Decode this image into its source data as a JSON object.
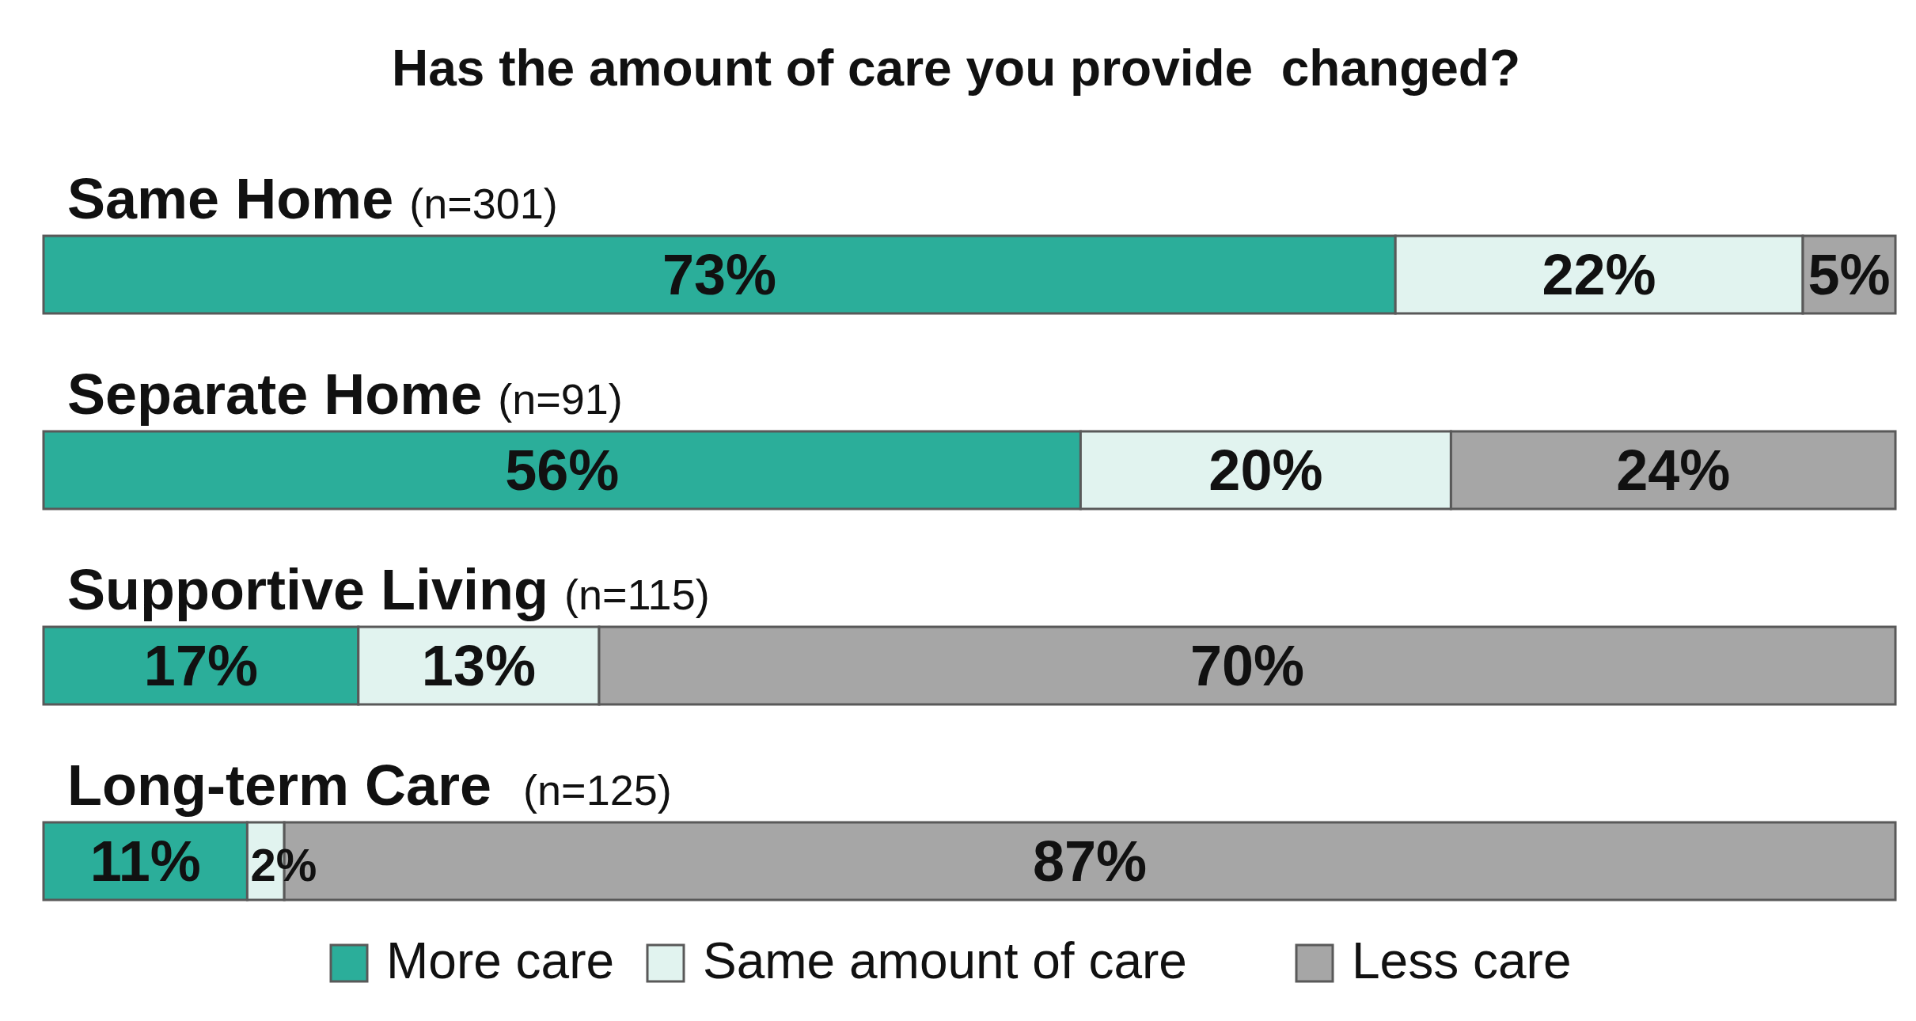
{
  "chart_data": {
    "type": "bar",
    "orientation": "horizontal",
    "stacked": true,
    "title": "Has the amount of care you provide  changed?",
    "categories": [
      "Same Home (n=301)",
      "Separate Home (n=91)",
      "Supportive Living (n=115)",
      "Long-term Care  (n=125)"
    ],
    "series": [
      {
        "name": "More care",
        "color": "#2bae9a",
        "values": [
          73,
          56,
          17,
          11
        ],
        "value_labels": [
          "73%",
          "56%",
          "17%",
          "11%"
        ]
      },
      {
        "name": "Same amount of care",
        "color": "#e1f3ef",
        "values": [
          22,
          20,
          13,
          2
        ],
        "value_labels": [
          "22%",
          "20%",
          "13%",
          "2%"
        ]
      },
      {
        "name": "Less care",
        "color": "#a6a6a6",
        "values": [
          5,
          24,
          70,
          87
        ],
        "value_labels": [
          "5%",
          "24%",
          "70%",
          "87%"
        ]
      }
    ],
    "legend": "bottom"
  }
}
